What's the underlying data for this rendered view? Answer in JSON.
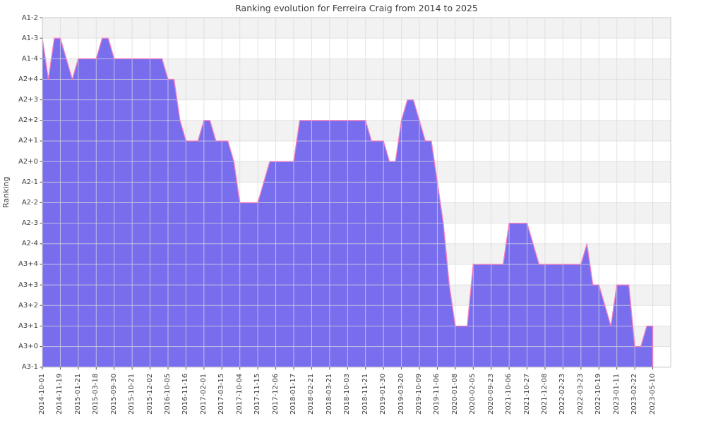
{
  "title": "Ranking evolution for Ferreira Craig from 2014 to 2025",
  "chart_data": {
    "type": "area",
    "title": "Ranking evolution for Ferreira Craig from 2014 to 2025",
    "xlabel": "",
    "ylabel": "Ranking",
    "legend": "none",
    "grid": "on",
    "y_levels_top_to_bottom": [
      "A1-2",
      "A1-3",
      "A1-4",
      "A2+4",
      "A2+3",
      "A2+2",
      "A2+1",
      "A2+0",
      "A2-1",
      "A2-2",
      "A2-3",
      "A2-4",
      "A3+4",
      "A3+3",
      "A3+2",
      "A3+1",
      "A3+0",
      "A3-1"
    ],
    "x_tick_labels": [
      "2014-10-01",
      "2014-11-19",
      "2015-01-21",
      "2015-03-18",
      "2015-09-30",
      "2015-10-21",
      "2015-12-02",
      "2016-10-05",
      "2016-11-16",
      "2017-02-01",
      "2017-03-15",
      "2017-10-04",
      "2017-11-15",
      "2017-12-06",
      "2018-01-17",
      "2018-02-21",
      "2018-03-21",
      "2018-10-03",
      "2018-11-21",
      "2019-01-30",
      "2019-03-20",
      "2019-10-09",
      "2019-11-06",
      "2020-01-08",
      "2020-02-05",
      "2020-09-23",
      "2021-10-06",
      "2021-10-27",
      "2021-12-08",
      "2022-02-23",
      "2022-03-23",
      "2022-10-19",
      "2023-01-11",
      "2023-02-22",
      "2023-05-10"
    ],
    "points_per_tick_interval": 3,
    "values": [
      "A1-3",
      "A2+4",
      "A1-3",
      "A1-3",
      "A1-4",
      "A2+4",
      "A1-4",
      "A1-4",
      "A1-4",
      "A1-4",
      "A1-3",
      "A1-3",
      "A1-4",
      "A1-4",
      "A1-4",
      "A1-4",
      "A1-4",
      "A1-4",
      "A1-4",
      "A1-4",
      "A1-4",
      "A2+4",
      "A2+4",
      "A2+2",
      "A2+1",
      "A2+1",
      "A2+1",
      "A2+2",
      "A2+2",
      "A2+1",
      "A2+1",
      "A2+1",
      "A2+0",
      "A2-2",
      "A2-2",
      "A2-2",
      "A2-2",
      "A2-1",
      "A2+0",
      "A2+0",
      "A2+0",
      "A2+0",
      "A2+0",
      "A2+2",
      "A2+2",
      "A2+2",
      "A2+2",
      "A2+2",
      "A2+2",
      "A2+2",
      "A2+2",
      "A2+2",
      "A2+2",
      "A2+2",
      "A2+2",
      "A2+1",
      "A2+1",
      "A2+1",
      "A2+0",
      "A2+0",
      "A2+2",
      "A2+3",
      "A2+3",
      "A2+2",
      "A2+1",
      "A2+1",
      "A2-1",
      "A2-3",
      "A3+3",
      "A3+1",
      "A3+1",
      "A3+1",
      "A3+4",
      "A3+4",
      "A3+4",
      "A3+4",
      "A3+4",
      "A3+4",
      "A2-3",
      "A2-3",
      "A2-3",
      "A2-3",
      "A2-4",
      "A3+4",
      "A3+4",
      "A3+4",
      "A3+4",
      "A3+4",
      "A3+4",
      "A3+4",
      "A3+4",
      "A2-4",
      "A3+3",
      "A3+3",
      "A3+2",
      "A3+1",
      "A3+3",
      "A3+3",
      "A3+3",
      "A3+0",
      "A3+0",
      "A3+1",
      "A3+1"
    ],
    "values_at_ticks": [
      "A1-3",
      "A1-3",
      "A1-4",
      "A1-4",
      "A1-4",
      "A1-4",
      "A1-4",
      "A2+4",
      "A2+1",
      "A2+2",
      "A2+1",
      "A2-2",
      "A2-2",
      "A2+0",
      "A2+0",
      "A2+2",
      "A2+2",
      "A2+2",
      "A2+2",
      "A2+1",
      "A2+2",
      "A2+2",
      "A2-1",
      "A3+1",
      "A3+4",
      "A3+4",
      "A2-3",
      "A2-3",
      "A3+4",
      "A3+4",
      "A3+4",
      "A3+3",
      "A3+3",
      "A3+0",
      "A3+1"
    ],
    "layout": {
      "banded_background": true,
      "gray_band_indices": [
        0,
        2,
        3,
        5,
        7,
        9,
        11,
        13,
        15
      ],
      "colors": {
        "area_fill": "rgba(110,98,235,0.92)",
        "line": "#f87fc0",
        "band_gray": "#f2f2f2",
        "grid_line": "#d9d9dc",
        "plot_border": "#c9c9cd",
        "tick_mark": "#555555",
        "text": "#3d3d3d",
        "background": "#ffffff"
      }
    }
  }
}
